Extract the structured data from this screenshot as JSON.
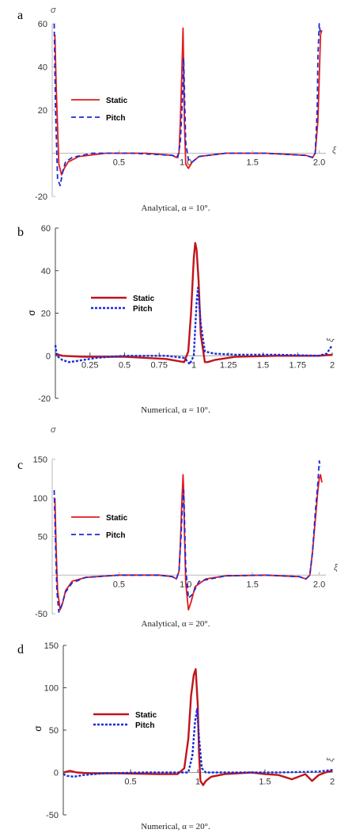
{
  "chart_data": [
    {
      "panel": "a",
      "type": "line",
      "caption": "Analytical, α = 10°.",
      "ylabel": "σ",
      "xlabel": "ξ",
      "xlim": [
        0,
        2.05
      ],
      "ylim": [
        -20,
        60
      ],
      "xticks": [
        "0.5",
        "1.0",
        "1.5",
        "2.0"
      ],
      "yticks": [
        "-20",
        "20",
        "40",
        "60"
      ],
      "series": [
        {
          "name": "Static",
          "color": "#e3191c",
          "dash": "solid",
          "x": [
            0.02,
            0.03,
            0.05,
            0.07,
            0.09,
            0.12,
            0.2,
            0.4,
            0.7,
            0.9,
            0.93,
            0.95,
            0.96,
            0.97,
            0.98,
            0.985,
            0.99,
            1.0,
            1.02,
            1.05,
            1.1,
            1.3,
            1.6,
            1.9,
            1.95,
            1.97,
            1.99,
            2.0,
            2.01,
            2.02
          ],
          "y": [
            55,
            30,
            -5,
            -10,
            -7,
            -4,
            -1.5,
            0,
            0,
            -1,
            -2,
            0,
            15,
            35,
            58,
            40,
            15,
            -5,
            -7,
            -4,
            -1.5,
            0,
            0,
            -1,
            -2,
            0,
            15,
            35,
            55,
            57
          ]
        },
        {
          "name": "Pitch",
          "color": "#1a2bd6",
          "dash": "dashed",
          "x": [
            0.015,
            0.025,
            0.04,
            0.06,
            0.08,
            0.1,
            0.15,
            0.3,
            0.6,
            0.9,
            0.94,
            0.96,
            0.975,
            0.985,
            0.99,
            1.0,
            1.02,
            1.05,
            1.1,
            1.3,
            1.6,
            1.9,
            1.95,
            1.97,
            1.985,
            1.99,
            2.0,
            2.01
          ],
          "y": [
            60,
            20,
            -12,
            -15,
            -8,
            -4,
            -2,
            0,
            0,
            -1,
            -2,
            5,
            25,
            44,
            30,
            5,
            -3,
            -4,
            -1.5,
            0,
            0,
            -1,
            -2,
            0,
            20,
            45,
            60,
            55
          ]
        }
      ]
    },
    {
      "panel": "b",
      "type": "line",
      "caption": "Numerical, α = 10°.",
      "ylabel": "σ",
      "xlabel": "ξ",
      "xlim": [
        0,
        2
      ],
      "ylim": [
        -20,
        60
      ],
      "xticks": [
        "0.25",
        "0.5",
        "0.75",
        "1",
        "1.25",
        "1.5",
        "1.75",
        "2"
      ],
      "yticks": [
        "-20",
        "0",
        "20",
        "40",
        "60"
      ],
      "series": [
        {
          "name": "Static",
          "color": "#c0141b",
          "dash": "solid",
          "x": [
            0,
            0.05,
            0.2,
            0.5,
            0.8,
            0.93,
            0.96,
            0.98,
            1.0,
            1.01,
            1.02,
            1.035,
            1.05,
            1.08,
            1.1,
            1.15,
            1.3,
            1.6,
            1.9,
            2.0
          ],
          "y": [
            1,
            0,
            -0.5,
            -0.5,
            -1.5,
            -3,
            2,
            20,
            46,
            53,
            50,
            35,
            10,
            -3,
            -3,
            -2,
            -0.5,
            0,
            0,
            0.5
          ]
        },
        {
          "name": "Pitch",
          "color": "#1a2bd6",
          "dash": "dotted",
          "x": [
            0,
            0.01,
            0.05,
            0.1,
            0.2,
            0.3,
            0.5,
            0.8,
            0.93,
            0.96,
            0.97,
            0.985,
            1.0,
            1.02,
            1.03,
            1.05,
            1.08,
            1.15,
            1.3,
            1.6,
            1.9,
            1.96,
            1.98,
            2.0
          ],
          "y": [
            5,
            0,
            -2,
            -3,
            -2,
            -1,
            0,
            0,
            -1,
            -3,
            -4,
            -2,
            0,
            25,
            32,
            15,
            2,
            1,
            0.5,
            0.5,
            0,
            1,
            3,
            5
          ]
        }
      ]
    },
    {
      "panel": "c",
      "type": "line",
      "caption": "Analytical, α = 20°.",
      "ylabel": "σ",
      "xlabel": "ξ",
      "xlim": [
        0,
        2.05
      ],
      "ylim": [
        -50,
        150
      ],
      "xticks": [
        "0.5",
        "1.0",
        "1.5",
        "2.0"
      ],
      "yticks": [
        "-50",
        "50",
        "100",
        "150"
      ],
      "series": [
        {
          "name": "Static",
          "color": "#e3191c",
          "dash": "solid",
          "x": [
            0.02,
            0.03,
            0.04,
            0.06,
            0.08,
            0.1,
            0.15,
            0.25,
            0.5,
            0.8,
            0.9,
            0.93,
            0.95,
            0.96,
            0.97,
            0.98,
            0.985,
            0.99,
            1.0,
            1.02,
            1.04,
            1.07,
            1.15,
            1.3,
            1.6,
            1.85,
            1.9,
            1.93,
            1.95,
            1.97,
            1.99,
            2.0,
            2.01,
            2.02
          ],
          "y": [
            100,
            30,
            -20,
            -45,
            -35,
            -20,
            -8,
            -3,
            0,
            0,
            -2,
            -5,
            5,
            40,
            90,
            130,
            110,
            60,
            -10,
            -45,
            -35,
            -15,
            -5,
            -1,
            0,
            -2,
            -5,
            0,
            30,
            70,
            110,
            125,
            130,
            120
          ]
        },
        {
          "name": "Pitch",
          "color": "#1a2bd6",
          "dash": "dashed",
          "x": [
            0.015,
            0.025,
            0.035,
            0.05,
            0.07,
            0.1,
            0.15,
            0.25,
            0.5,
            0.8,
            0.9,
            0.93,
            0.95,
            0.965,
            0.975,
            0.985,
            0.99,
            1.0,
            1.02,
            1.05,
            1.1,
            1.3,
            1.6,
            1.85,
            1.9,
            1.93,
            1.95,
            1.97,
            1.99,
            2.0,
            2.01
          ],
          "y": [
            110,
            40,
            -20,
            -48,
            -40,
            -22,
            -10,
            -3,
            0,
            0,
            -2,
            -5,
            5,
            50,
            90,
            110,
            80,
            10,
            -30,
            -25,
            -8,
            -1,
            0,
            -2,
            -5,
            0,
            30,
            80,
            120,
            148,
            140
          ]
        }
      ]
    },
    {
      "panel": "d",
      "type": "line",
      "caption": "Numerical, α = 20°.",
      "ylabel": "σ",
      "xlabel": "ξ",
      "xlim": [
        0,
        2
      ],
      "ylim": [
        -50,
        150
      ],
      "xticks": [
        "0.5",
        "1",
        "1.5",
        "2"
      ],
      "yticks": [
        "-50",
        "0",
        "50",
        "100",
        "150"
      ],
      "series": [
        {
          "name": "Static",
          "color": "#c0141b",
          "dash": "solid",
          "x": [
            0,
            0.05,
            0.1,
            0.2,
            0.4,
            0.7,
            0.85,
            0.9,
            0.93,
            0.95,
            0.97,
            0.985,
            1.0,
            1.01,
            1.02,
            1.04,
            1.06,
            1.1,
            1.2,
            1.3,
            1.4,
            1.5,
            1.6,
            1.7,
            1.8,
            1.85,
            1.9,
            1.95,
            2.0
          ],
          "y": [
            0,
            2,
            0,
            -1,
            -1,
            -2,
            -2,
            5,
            40,
            90,
            115,
            122,
            80,
            20,
            -10,
            -15,
            -10,
            -5,
            -2,
            -1,
            0,
            -2,
            -3,
            -8,
            -2,
            -10,
            -3,
            0,
            2
          ]
        },
        {
          "name": "Pitch",
          "color": "#1a2bd6",
          "dash": "dotted",
          "x": [
            0,
            0.03,
            0.08,
            0.15,
            0.3,
            0.6,
            0.85,
            0.93,
            0.96,
            0.98,
            0.995,
            1.01,
            1.03,
            1.06,
            1.1,
            1.3,
            1.6,
            1.9,
            2.0
          ],
          "y": [
            -2,
            -4,
            -5,
            -3,
            -1,
            0,
            0,
            0,
            20,
            60,
            75,
            40,
            5,
            0,
            0,
            0,
            0,
            1,
            3
          ]
        }
      ]
    }
  ]
}
